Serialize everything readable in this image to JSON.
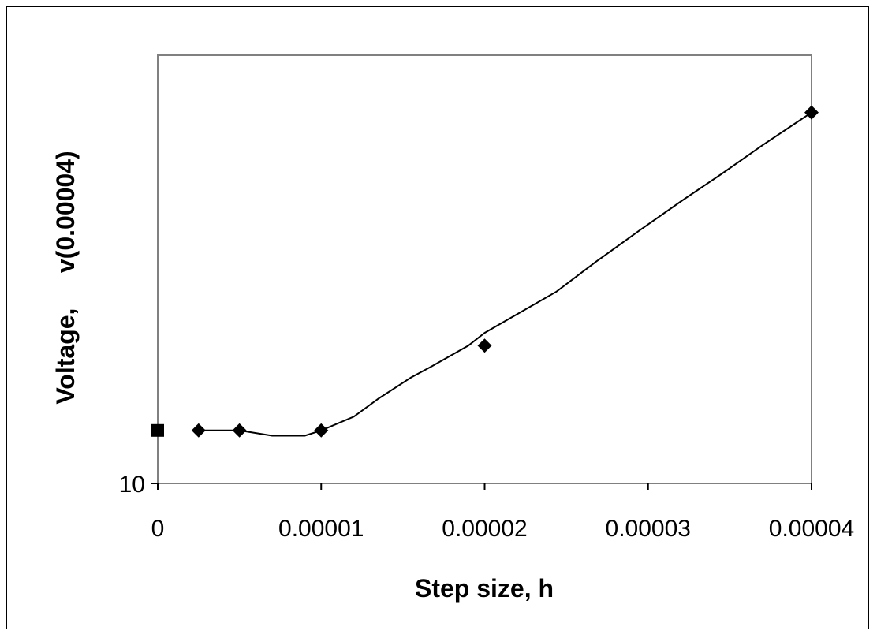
{
  "chart_data": {
    "type": "line",
    "title": "",
    "xlabel": "Step size, h",
    "ylabel": "Voltage,     v(0.00004)",
    "xlim": [
      0,
      4e-05
    ],
    "x_ticks": [
      0,
      1e-05,
      2e-05,
      3e-05,
      4e-05
    ],
    "x_tick_labels": [
      "0",
      "0.00001",
      "0.00002",
      "0.00003",
      "0.00004"
    ],
    "y_tick_labels": [
      "10"
    ],
    "grid": false,
    "legend": "none",
    "series": [
      {
        "marker": "diamond",
        "color": "#000000",
        "x": [
          2.5e-06,
          5e-06,
          1e-05,
          2e-05,
          4e-05
        ],
        "y": [
          10.5,
          10.5,
          10.5,
          11.3,
          13.5
        ],
        "curve_x": [
          2.5e-06,
          5e-06,
          7e-06,
          9e-06,
          1e-05,
          1.2e-05,
          1.35e-05,
          1.55e-05,
          1.67e-05,
          1.9e-05,
          2e-05,
          2.18e-05,
          2.44e-05,
          2.68e-05,
          2.95e-05,
          3.2e-05,
          3.45e-05,
          3.7e-05,
          4e-05
        ],
        "curve_y": [
          10.5,
          10.5,
          10.45,
          10.45,
          10.5,
          10.63,
          10.8,
          11.0,
          11.1,
          11.3,
          11.42,
          11.58,
          11.81,
          12.09,
          12.39,
          12.66,
          12.92,
          13.19,
          13.5
        ]
      },
      {
        "marker": "square",
        "color": "#000000",
        "x": [
          0
        ],
        "y": [
          10.5
        ]
      }
    ]
  }
}
